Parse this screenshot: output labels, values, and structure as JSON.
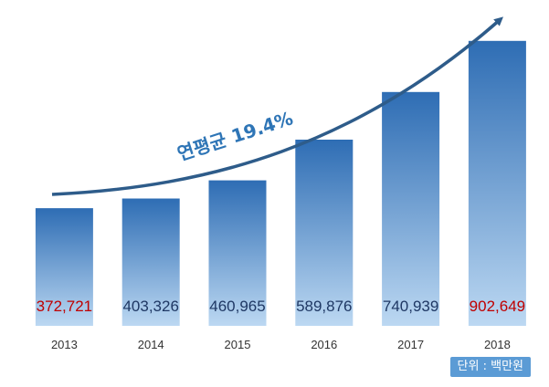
{
  "chart_data": {
    "type": "bar",
    "categories": [
      "2013",
      "2014",
      "2015",
      "2016",
      "2017",
      "2018"
    ],
    "values": [
      372721,
      403326,
      460965,
      589876,
      740939,
      902649
    ],
    "value_labels": [
      "372,721",
      "403,326",
      "460,965",
      "589,876",
      "740,939",
      "902,649"
    ],
    "highlight_indices": [
      0,
      5
    ],
    "annotation": "연평균 19.4%",
    "unit_label": "단위 : 백만원",
    "xlabel": "",
    "ylabel": "",
    "ylim": [
      0,
      960000
    ],
    "grid": false,
    "legend": "none"
  },
  "colors": {
    "bar_top": "#2e6db4",
    "bar_bottom": "#bcd8f2",
    "value_normal": "#1f3864",
    "value_highlight": "#c00000",
    "trend_arrow": "#2e5c8a",
    "annotation": "#2e75b6",
    "unit_badge": "#5b9bd5"
  }
}
